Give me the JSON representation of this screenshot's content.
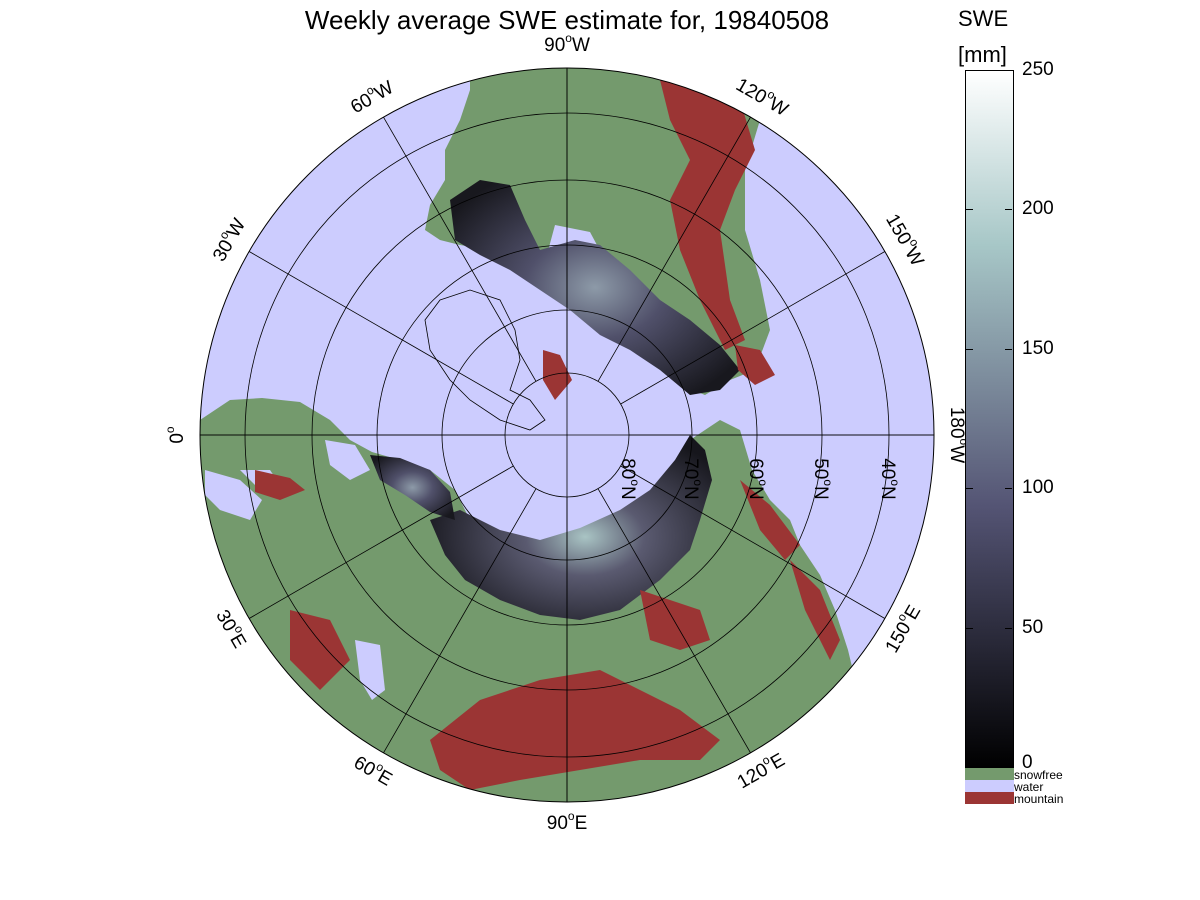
{
  "title": "Weekly average SWE estimate for, 19840508",
  "colorbar": {
    "title_line1": "SWE",
    "title_line2": "[mm]",
    "range": [
      0,
      250
    ],
    "ticks": [
      "0",
      "50",
      "100",
      "150",
      "200",
      "250"
    ],
    "colormap": "bone",
    "categories": [
      {
        "label": "snowfree",
        "color": "#749a6d"
      },
      {
        "label": "water",
        "color": "#ccccfe"
      },
      {
        "label": "mountain",
        "color": "#9b3534"
      }
    ]
  },
  "map": {
    "projection": "polar-stereographic-north",
    "longitude_labels": [
      {
        "deg": "90",
        "hemi": "W"
      },
      {
        "deg": "120",
        "hemi": "W"
      },
      {
        "deg": "150",
        "hemi": "W"
      },
      {
        "deg": "180",
        "hemi": "W"
      },
      {
        "deg": "150",
        "hemi": "E"
      },
      {
        "deg": "120",
        "hemi": "E"
      },
      {
        "deg": "90",
        "hemi": "E"
      },
      {
        "deg": "60",
        "hemi": "E"
      },
      {
        "deg": "30",
        "hemi": "E"
      },
      {
        "deg": "0",
        "hemi": ""
      },
      {
        "deg": "30",
        "hemi": "W"
      },
      {
        "deg": "60",
        "hemi": "W"
      }
    ],
    "latitude_labels": [
      {
        "deg": "80",
        "hemi": "N"
      },
      {
        "deg": "70",
        "hemi": "N"
      },
      {
        "deg": "60",
        "hemi": "N"
      },
      {
        "deg": "50",
        "hemi": "N"
      },
      {
        "deg": "40",
        "hemi": "N"
      }
    ],
    "colors": {
      "water": "#ccccfe",
      "land": "#749a6d",
      "mountain": "#9b3534",
      "snow_dark": "#1b1b22",
      "snow_mid": "#5a5a70",
      "snow_light": "#a9c4c4"
    }
  }
}
